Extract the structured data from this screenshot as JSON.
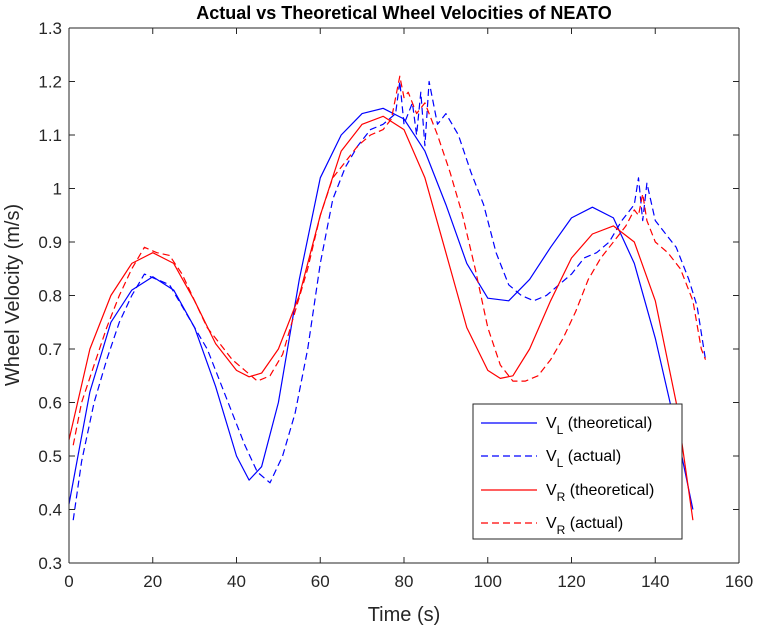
{
  "chart_data": {
    "type": "line",
    "title": "Actual vs Theoretical Wheel Velocities of NEATO",
    "xlabel": "Time (s)",
    "ylabel": "Wheel Velocity (m/s)",
    "xlim": [
      0,
      160
    ],
    "ylim": [
      0.3,
      1.3
    ],
    "xticks": [
      0,
      20,
      40,
      60,
      80,
      100,
      120,
      140,
      160
    ],
    "yticks": [
      0.3,
      0.4,
      0.5,
      0.6,
      0.7,
      0.8,
      0.9,
      1,
      1.1,
      1.2,
      1.3
    ],
    "ytick_labels": [
      "0.3",
      "0.4",
      "0.5",
      "0.6",
      "0.7",
      "0.8",
      "0.9",
      "1",
      "1.1",
      "1.2",
      "1.3"
    ],
    "grid": false,
    "legend_position": "bottom-right",
    "series": [
      {
        "name": "V_L (theoretical)",
        "label_main": "V",
        "label_sub": "L",
        "label_rest": " (theoretical)",
        "color": "#0000ff",
        "dash": "solid",
        "x": [
          0,
          5,
          10,
          15,
          20,
          25,
          30,
          35,
          40,
          43,
          46,
          50,
          55,
          60,
          65,
          70,
          75,
          80,
          85,
          90,
          95,
          100,
          105,
          110,
          115,
          120,
          125,
          130,
          135,
          140,
          145,
          149
        ],
        "y": [
          0.41,
          0.62,
          0.75,
          0.81,
          0.835,
          0.81,
          0.74,
          0.63,
          0.5,
          0.455,
          0.48,
          0.6,
          0.83,
          1.02,
          1.1,
          1.14,
          1.15,
          1.13,
          1.07,
          0.97,
          0.86,
          0.795,
          0.79,
          0.83,
          0.89,
          0.945,
          0.965,
          0.945,
          0.86,
          0.72,
          0.55,
          0.4
        ]
      },
      {
        "name": "V_L (actual)",
        "label_main": "V",
        "label_sub": "L",
        "label_rest": " (actual)",
        "color": "#0000ff",
        "dash": "dashed",
        "x": [
          1,
          3,
          6,
          9,
          12,
          15,
          18,
          21,
          24,
          27,
          30,
          33,
          36,
          39,
          42,
          45,
          48,
          51,
          54,
          57,
          60,
          63,
          66,
          69,
          72,
          75,
          78,
          79,
          80,
          82,
          83,
          84,
          85,
          86,
          88,
          90,
          93,
          96,
          99,
          102,
          105,
          108,
          111,
          114,
          117,
          120,
          123,
          126,
          129,
          132,
          135,
          136,
          137,
          138,
          140,
          142,
          145,
          148,
          150,
          152
        ],
        "y": [
          0.38,
          0.49,
          0.6,
          0.68,
          0.75,
          0.8,
          0.84,
          0.83,
          0.82,
          0.78,
          0.74,
          0.7,
          0.64,
          0.58,
          0.52,
          0.47,
          0.45,
          0.5,
          0.58,
          0.7,
          0.86,
          0.98,
          1.04,
          1.08,
          1.11,
          1.12,
          1.14,
          1.2,
          1.12,
          1.16,
          1.1,
          1.18,
          1.08,
          1.2,
          1.12,
          1.14,
          1.1,
          1.03,
          0.97,
          0.88,
          0.82,
          0.8,
          0.79,
          0.8,
          0.82,
          0.84,
          0.87,
          0.88,
          0.9,
          0.94,
          0.97,
          1.02,
          0.94,
          1.01,
          0.94,
          0.92,
          0.89,
          0.83,
          0.78,
          0.68
        ]
      },
      {
        "name": "V_R (theoretical)",
        "label_main": "V",
        "label_sub": "R",
        "label_rest": " (theoretical)",
        "color": "#ff0000",
        "dash": "solid",
        "x": [
          0,
          5,
          10,
          15,
          20,
          25,
          30,
          35,
          40,
          43,
          46,
          50,
          55,
          60,
          65,
          70,
          75,
          80,
          85,
          90,
          95,
          100,
          103,
          106,
          110,
          115,
          120,
          125,
          130,
          135,
          140,
          145,
          149
        ],
        "y": [
          0.53,
          0.7,
          0.8,
          0.86,
          0.88,
          0.86,
          0.79,
          0.71,
          0.66,
          0.648,
          0.655,
          0.7,
          0.8,
          0.95,
          1.07,
          1.12,
          1.135,
          1.11,
          1.02,
          0.88,
          0.74,
          0.66,
          0.645,
          0.65,
          0.7,
          0.79,
          0.87,
          0.915,
          0.93,
          0.9,
          0.79,
          0.6,
          0.38
        ]
      },
      {
        "name": "V_R (actual)",
        "label_main": "V",
        "label_sub": "R",
        "label_rest": " (actual)",
        "color": "#ff0000",
        "dash": "dashed",
        "x": [
          1,
          3,
          6,
          9,
          12,
          15,
          18,
          21,
          24,
          27,
          30,
          33,
          36,
          39,
          42,
          45,
          48,
          51,
          54,
          57,
          60,
          63,
          66,
          69,
          72,
          75,
          77,
          78,
          79,
          80,
          81,
          83,
          85,
          88,
          91,
          94,
          97,
          100,
          103,
          106,
          109,
          112,
          115,
          118,
          121,
          124,
          127,
          130,
          133,
          135,
          136,
          137,
          138,
          140,
          143,
          146,
          149,
          151,
          152
        ],
        "y": [
          0.52,
          0.6,
          0.67,
          0.74,
          0.8,
          0.85,
          0.89,
          0.88,
          0.875,
          0.84,
          0.79,
          0.74,
          0.71,
          0.68,
          0.66,
          0.64,
          0.65,
          0.69,
          0.77,
          0.85,
          0.95,
          1.02,
          1.05,
          1.08,
          1.1,
          1.11,
          1.13,
          1.17,
          1.21,
          1.17,
          1.18,
          1.14,
          1.16,
          1.1,
          1.03,
          0.95,
          0.85,
          0.74,
          0.67,
          0.64,
          0.64,
          0.65,
          0.68,
          0.72,
          0.77,
          0.83,
          0.87,
          0.9,
          0.93,
          0.96,
          0.95,
          0.99,
          0.94,
          0.9,
          0.88,
          0.85,
          0.79,
          0.7,
          0.68
        ]
      }
    ]
  }
}
